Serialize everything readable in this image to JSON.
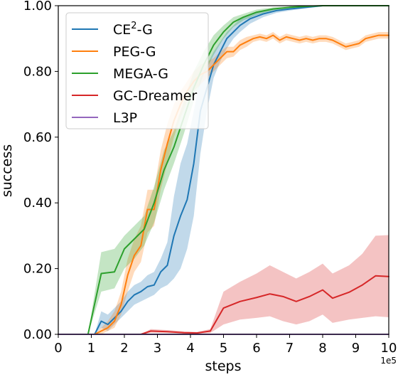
{
  "chart_data": {
    "type": "line",
    "xlabel": "steps",
    "ylabel": "success",
    "x_offset_text": "1e5",
    "xlim": [
      0,
      10
    ],
    "ylim": [
      0,
      1
    ],
    "x_ticks": [
      "0",
      "1",
      "2",
      "3",
      "4",
      "5",
      "6",
      "7",
      "8",
      "9",
      "10"
    ],
    "y_ticks": [
      "0.00",
      "0.20",
      "0.40",
      "0.60",
      "0.80",
      "1.00"
    ],
    "grid": false,
    "legend_position": "top-left",
    "series": [
      {
        "name": "CE²-G",
        "name_base": "CE",
        "name_sup": "2",
        "name_tail": "-G",
        "color": "#1f77b4",
        "x": [
          0,
          0.9,
          1.1,
          1.3,
          1.5,
          1.7,
          1.9,
          2.1,
          2.3,
          2.5,
          2.7,
          2.9,
          3.1,
          3.3,
          3.5,
          3.7,
          3.9,
          4.1,
          4.3,
          4.5,
          4.7,
          4.9,
          5.1,
          5.3,
          5.5,
          5.8,
          6.2,
          6.6,
          7.0,
          7.5,
          8.0,
          8.5,
          9.0,
          10
        ],
        "y": [
          0,
          0,
          0,
          0.04,
          0.03,
          0.05,
          0.07,
          0.1,
          0.12,
          0.13,
          0.145,
          0.15,
          0.19,
          0.21,
          0.3,
          0.36,
          0.41,
          0.52,
          0.68,
          0.75,
          0.82,
          0.86,
          0.9,
          0.92,
          0.94,
          0.96,
          0.975,
          0.985,
          0.99,
          0.995,
          1.0,
          1.0,
          1.0,
          1.0
        ],
        "lower": [
          0,
          0,
          0,
          0.02,
          0.01,
          0.03,
          0.05,
          0.07,
          0.09,
          0.1,
          0.11,
          0.12,
          0.14,
          0.15,
          0.17,
          0.2,
          0.26,
          0.36,
          0.55,
          0.68,
          0.78,
          0.83,
          0.87,
          0.9,
          0.92,
          0.945,
          0.965,
          0.978,
          0.985,
          0.992,
          0.998,
          1.0,
          1.0,
          1.0
        ],
        "upper": [
          0,
          0,
          0,
          0.07,
          0.06,
          0.08,
          0.1,
          0.13,
          0.15,
          0.16,
          0.18,
          0.19,
          0.23,
          0.28,
          0.42,
          0.52,
          0.58,
          0.68,
          0.78,
          0.82,
          0.86,
          0.89,
          0.92,
          0.94,
          0.96,
          0.975,
          0.985,
          0.992,
          0.996,
          0.999,
          1.0,
          1.0,
          1.0,
          1.0
        ]
      },
      {
        "name": "PEG-G",
        "color": "#ff7f0e",
        "x": [
          0,
          0.9,
          1.1,
          1.3,
          1.5,
          1.7,
          1.9,
          2.1,
          2.3,
          2.5,
          2.7,
          2.9,
          3.1,
          3.3,
          3.5,
          3.7,
          3.9,
          4.1,
          4.3,
          4.5,
          4.7,
          4.9,
          5.1,
          5.3,
          5.5,
          5.7,
          5.9,
          6.1,
          6.3,
          6.5,
          6.7,
          6.9,
          7.1,
          7.3,
          7.5,
          7.7,
          7.9,
          8.1,
          8.3,
          8.5,
          8.7,
          8.9,
          9.1,
          9.3,
          9.5,
          9.7,
          10
        ],
        "y": [
          0,
          0,
          0,
          0.01,
          0.02,
          0.04,
          0.09,
          0.18,
          0.24,
          0.27,
          0.38,
          0.38,
          0.5,
          0.58,
          0.65,
          0.7,
          0.74,
          0.77,
          0.79,
          0.8,
          0.82,
          0.84,
          0.86,
          0.86,
          0.88,
          0.89,
          0.9,
          0.905,
          0.9,
          0.91,
          0.895,
          0.905,
          0.9,
          0.895,
          0.9,
          0.895,
          0.9,
          0.9,
          0.895,
          0.885,
          0.875,
          0.88,
          0.885,
          0.9,
          0.905,
          0.91,
          0.91
        ],
        "lower": [
          0,
          0,
          0,
          0.0,
          0.01,
          0.02,
          0.06,
          0.13,
          0.19,
          0.22,
          0.31,
          0.33,
          0.44,
          0.52,
          0.6,
          0.66,
          0.71,
          0.74,
          0.76,
          0.78,
          0.8,
          0.82,
          0.84,
          0.845,
          0.865,
          0.875,
          0.89,
          0.895,
          0.89,
          0.9,
          0.885,
          0.895,
          0.89,
          0.885,
          0.89,
          0.885,
          0.89,
          0.89,
          0.885,
          0.875,
          0.865,
          0.87,
          0.875,
          0.89,
          0.895,
          0.9,
          0.9
        ],
        "upper": [
          0,
          0,
          0,
          0.02,
          0.04,
          0.07,
          0.13,
          0.23,
          0.29,
          0.33,
          0.44,
          0.44,
          0.56,
          0.64,
          0.7,
          0.74,
          0.77,
          0.8,
          0.82,
          0.83,
          0.84,
          0.86,
          0.875,
          0.875,
          0.895,
          0.905,
          0.91,
          0.915,
          0.91,
          0.92,
          0.905,
          0.915,
          0.91,
          0.905,
          0.91,
          0.905,
          0.91,
          0.91,
          0.905,
          0.895,
          0.885,
          0.89,
          0.895,
          0.91,
          0.915,
          0.92,
          0.92
        ]
      },
      {
        "name": "MEGA-G",
        "color": "#2ca02c",
        "x": [
          0,
          0.9,
          1.3,
          1.7,
          2.0,
          2.3,
          2.6,
          2.9,
          3.2,
          3.5,
          3.8,
          4.1,
          4.4,
          4.7,
          5.0,
          5.3,
          5.6,
          6.0,
          6.5,
          7.0,
          7.5,
          8.0,
          8.5,
          9.0,
          10
        ],
        "y": [
          0,
          0,
          0.185,
          0.19,
          0.26,
          0.29,
          0.32,
          0.4,
          0.5,
          0.57,
          0.66,
          0.75,
          0.82,
          0.88,
          0.92,
          0.95,
          0.965,
          0.98,
          0.99,
          0.995,
          0.998,
          1.0,
          1.0,
          1.0,
          1.0
        ],
        "lower": [
          0,
          0,
          0.13,
          0.14,
          0.2,
          0.23,
          0.27,
          0.34,
          0.44,
          0.52,
          0.61,
          0.71,
          0.79,
          0.85,
          0.9,
          0.935,
          0.955,
          0.972,
          0.985,
          0.992,
          0.996,
          0.999,
          1.0,
          1.0,
          1.0
        ],
        "upper": [
          0,
          0,
          0.25,
          0.26,
          0.3,
          0.33,
          0.36,
          0.45,
          0.56,
          0.62,
          0.71,
          0.8,
          0.86,
          0.91,
          0.94,
          0.965,
          0.975,
          0.988,
          0.995,
          0.998,
          1.0,
          1.0,
          1.0,
          1.0,
          1.0
        ]
      },
      {
        "name": "GC-Dreamer",
        "color": "#d62728",
        "x": [
          0,
          2.5,
          2.8,
          3.3,
          3.8,
          4.2,
          4.6,
          5.0,
          5.5,
          6.0,
          6.4,
          6.8,
          7.2,
          7.6,
          8.0,
          8.3,
          8.8,
          9.2,
          9.6,
          10
        ],
        "y": [
          0,
          0,
          0.01,
          0.008,
          0.005,
          0.004,
          0.01,
          0.08,
          0.1,
          0.112,
          0.123,
          0.115,
          0.1,
          0.115,
          0.135,
          0.11,
          0.128,
          0.15,
          0.178,
          0.176
        ],
        "lower": [
          0,
          0,
          0.005,
          0.004,
          0.002,
          0.002,
          0.004,
          0.03,
          0.045,
          0.05,
          0.055,
          0.04,
          0.03,
          0.04,
          0.06,
          0.035,
          0.045,
          0.05,
          0.055,
          0.052
        ],
        "upper": [
          0,
          0,
          0.016,
          0.013,
          0.009,
          0.007,
          0.016,
          0.13,
          0.16,
          0.185,
          0.21,
          0.19,
          0.17,
          0.19,
          0.215,
          0.185,
          0.21,
          0.245,
          0.3,
          0.302
        ]
      },
      {
        "name": "L3P",
        "color": "#9467bd",
        "x": [
          0,
          10
        ],
        "y": [
          0,
          0
        ]
      }
    ]
  }
}
